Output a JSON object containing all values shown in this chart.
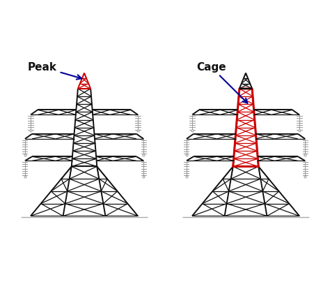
{
  "bg_color": "#ffffff",
  "line_color": "#111111",
  "red_color": "#cc0000",
  "blue_color": "#000099",
  "lw_main": 1.4,
  "lw_thin": 0.9,
  "label_peak": "Peak",
  "label_cage": "Cage",
  "fig_width": 4.74,
  "fig_height": 4.04,
  "dpi": 100
}
